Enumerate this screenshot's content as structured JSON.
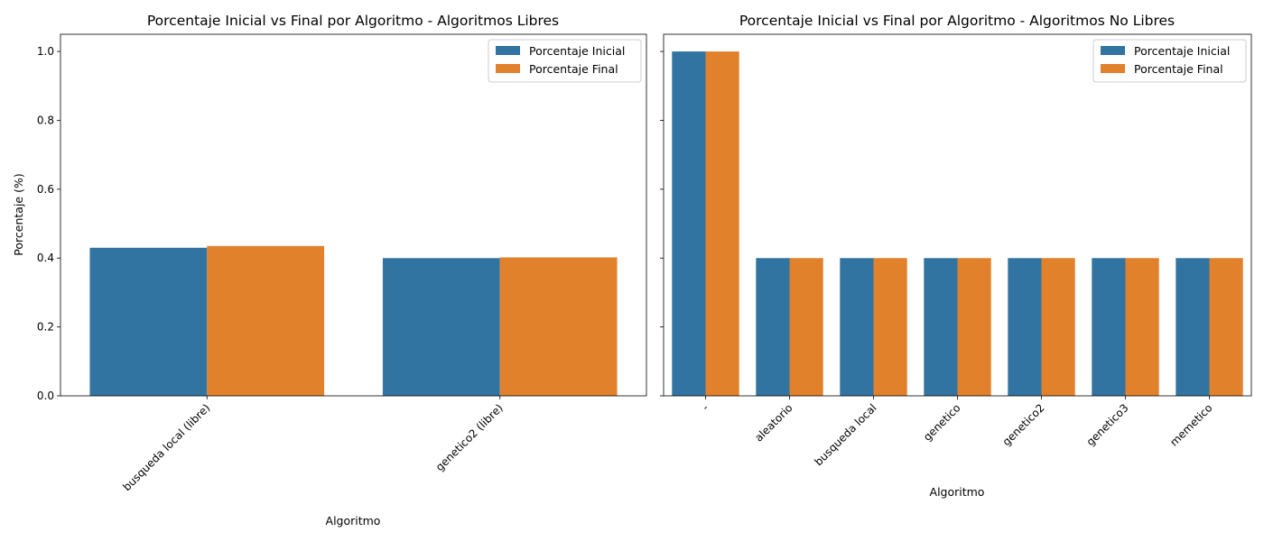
{
  "colors": {
    "inicial": "#3274a1",
    "final": "#e1812c"
  },
  "chart_data": [
    {
      "type": "bar",
      "title": "Porcentaje Inicial vs Final por Algoritmo - Algoritmos Libres",
      "xlabel": "Algoritmo",
      "ylabel": "Porcentaje (%)",
      "ylim": [
        0,
        1.05
      ],
      "yticks": [
        "0.0",
        "0.2",
        "0.4",
        "0.6",
        "0.8",
        "1.0"
      ],
      "legend_position": "top-right",
      "grid": false,
      "categories": [
        "busqueda local (libre)",
        "genetico2 (libre)"
      ],
      "series": [
        {
          "name": "Porcentaje Inicial",
          "values": [
            0.43,
            0.4
          ]
        },
        {
          "name": "Porcentaje Final",
          "values": [
            0.435,
            0.402
          ]
        }
      ]
    },
    {
      "type": "bar",
      "title": "Porcentaje Inicial vs Final por Algoritmo - Algoritmos No Libres",
      "xlabel": "Algoritmo",
      "ylabel": "",
      "ylim": [
        0,
        1.05
      ],
      "yticks": [
        "0.0",
        "0.2",
        "0.4",
        "0.6",
        "0.8",
        "1.0"
      ],
      "legend_position": "top-right",
      "grid": false,
      "categories": [
        "-",
        "aleatorio",
        "busqueda local",
        "genetico",
        "genetico2",
        "genetico3",
        "memetico"
      ],
      "series": [
        {
          "name": "Porcentaje Inicial",
          "values": [
            1.0,
            0.4,
            0.4,
            0.4,
            0.4,
            0.4,
            0.4
          ]
        },
        {
          "name": "Porcentaje Final",
          "values": [
            1.0,
            0.4,
            0.4,
            0.4,
            0.4,
            0.4,
            0.4
          ]
        }
      ]
    }
  ]
}
